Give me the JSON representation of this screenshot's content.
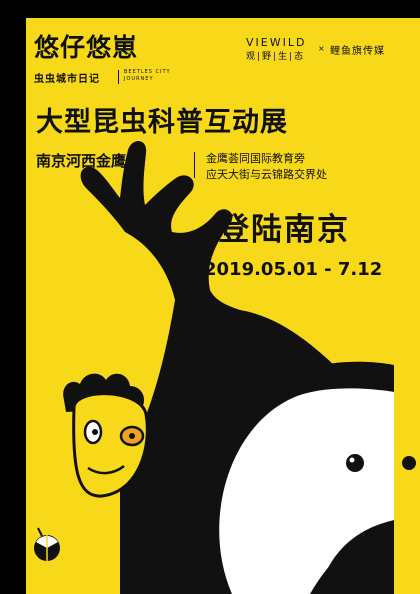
{
  "logo_text": "悠仔悠崽",
  "subtitle_cn": "虫虫城市日记",
  "subtitle_en": "BEETLES CITY JOURNEY",
  "brand": {
    "name_en": "VIEWILD",
    "name_cn": "观|野|生|态",
    "separator": "×",
    "partner": "鲤鱼旗传媒"
  },
  "headline": "大型昆虫科普互动展",
  "venue": "南京河西金鹰1F",
  "address": [
    "金鹰荟同国际教育旁",
    "应天大街与云锦路交界处"
  ],
  "arrival": "登陆南京",
  "dates": "2019.05.01 - 7.12",
  "colors": {
    "background": "#f8d91a",
    "ink": "#111111",
    "accent_orange": "#f0a21e",
    "white": "#ffffff"
  },
  "illustrations": [
    "tree-branch",
    "bug-character",
    "round-character",
    "small-bug-icon"
  ]
}
